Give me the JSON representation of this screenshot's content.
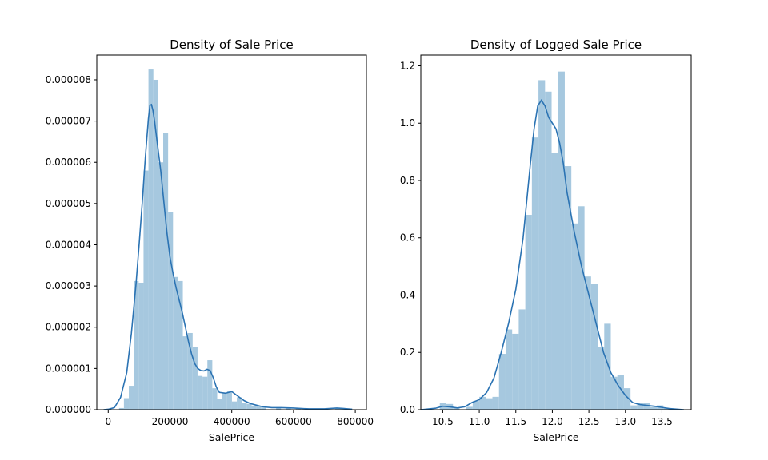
{
  "chart_data": [
    {
      "type": "histogram+kde",
      "title": "Density of Sale Price",
      "xlabel": "SalePrice",
      "ylabel": "",
      "xlim": [
        -37000,
        836000
      ],
      "ylim": [
        0,
        8.6e-06
      ],
      "grid": false,
      "bar_color": "#a6c8df",
      "line_color": "#2b73b3",
      "xticks": [
        0,
        200000,
        400000,
        600000,
        800000
      ],
      "xtick_labels": [
        "0",
        "200000",
        "400000",
        "600000",
        "800000"
      ],
      "yticks": [
        0,
        1e-06,
        2e-06,
        3e-06,
        4e-06,
        5e-06,
        6e-06,
        7e-06,
        8e-06
      ],
      "ytick_labels": [
        "0.000000",
        "0.000001",
        "0.000002",
        "0.000003",
        "0.000004",
        "0.000005",
        "0.000006",
        "0.000007",
        "0.000008"
      ],
      "bins": [
        {
          "x0": 34900,
          "x1": 50800,
          "y": 4e-08
        },
        {
          "x0": 50800,
          "x1": 66700,
          "y": 2.8e-07
        },
        {
          "x0": 66700,
          "x1": 82600,
          "y": 5.8e-07
        },
        {
          "x0": 82600,
          "x1": 98500,
          "y": 3.12e-06
        },
        {
          "x0": 98500,
          "x1": 114400,
          "y": 3.08e-06
        },
        {
          "x0": 114400,
          "x1": 130300,
          "y": 5.8e-06
        },
        {
          "x0": 130300,
          "x1": 146200,
          "y": 8.25e-06
        },
        {
          "x0": 146200,
          "x1": 162100,
          "y": 8e-06
        },
        {
          "x0": 162100,
          "x1": 178000,
          "y": 6e-06
        },
        {
          "x0": 178000,
          "x1": 193900,
          "y": 6.72e-06
        },
        {
          "x0": 193900,
          "x1": 209800,
          "y": 4.8e-06
        },
        {
          "x0": 209800,
          "x1": 225700,
          "y": 3.22e-06
        },
        {
          "x0": 225700,
          "x1": 241600,
          "y": 3.12e-06
        },
        {
          "x0": 241600,
          "x1": 257500,
          "y": 1.78e-06
        },
        {
          "x0": 257500,
          "x1": 273400,
          "y": 1.86e-06
        },
        {
          "x0": 273400,
          "x1": 289300,
          "y": 1.52e-06
        },
        {
          "x0": 289300,
          "x1": 305200,
          "y": 8.2e-07
        },
        {
          "x0": 305200,
          "x1": 321100,
          "y": 8e-07
        },
        {
          "x0": 321100,
          "x1": 337000,
          "y": 1.2e-06
        },
        {
          "x0": 337000,
          "x1": 352900,
          "y": 5.2e-07
        },
        {
          "x0": 352900,
          "x1": 368800,
          "y": 2.7e-07
        },
        {
          "x0": 368800,
          "x1": 384700,
          "y": 4e-07
        },
        {
          "x0": 384700,
          "x1": 400600,
          "y": 4.5e-07
        },
        {
          "x0": 400600,
          "x1": 416500,
          "y": 2e-07
        },
        {
          "x0": 416500,
          "x1": 432400,
          "y": 3e-07
        },
        {
          "x0": 432400,
          "x1": 448300,
          "y": 1.6e-07
        },
        {
          "x0": 448300,
          "x1": 464200,
          "y": 1.4e-07
        },
        {
          "x0": 464200,
          "x1": 480100,
          "y": 1e-07
        },
        {
          "x0": 480100,
          "x1": 496000,
          "y": 8e-08
        },
        {
          "x0": 496000,
          "x1": 511900,
          "y": 5e-08
        },
        {
          "x0": 543700,
          "x1": 559600,
          "y": 5e-08
        },
        {
          "x0": 575500,
          "x1": 591400,
          "y": 4e-08
        },
        {
          "x0": 607300,
          "x1": 623200,
          "y": 4e-08
        },
        {
          "x0": 734500,
          "x1": 750400,
          "y": 5e-08
        },
        {
          "x0": 750400,
          "x1": 766300,
          "y": 4e-08
        }
      ],
      "kde": {
        "x": [
          -15000,
          0,
          20000,
          40000,
          60000,
          75000,
          90000,
          100000,
          110000,
          120000,
          130000,
          135000,
          140000,
          145000,
          150000,
          160000,
          170000,
          180000,
          190000,
          200000,
          210000,
          220000,
          230000,
          240000,
          250000,
          260000,
          270000,
          280000,
          290000,
          300000,
          310000,
          320000,
          330000,
          340000,
          350000,
          360000,
          380000,
          400000,
          420000,
          440000,
          460000,
          480000,
          500000,
          530000,
          560000,
          600000,
          650000,
          700000,
          740000,
          760000,
          790000
        ],
        "y": [
          0.0,
          1e-08,
          5e-08,
          3e-07,
          9e-07,
          1.85e-06,
          3.05e-06,
          4e-06,
          5e-06,
          6.1e-06,
          7.05e-06,
          7.38e-06,
          7.4e-06,
          7.25e-06,
          7e-06,
          6.4e-06,
          5.8e-06,
          5.05e-06,
          4.3e-06,
          3.7e-06,
          3.3e-06,
          2.95e-06,
          2.65e-06,
          2.35e-06,
          2e-06,
          1.65e-06,
          1.35e-06,
          1.12e-06,
          1e-06,
          9.5e-07,
          9.4e-07,
          9.8e-07,
          9.5e-07,
          7.8e-07,
          5.5e-07,
          4.2e-07,
          4e-07,
          4.4e-07,
          3.3e-07,
          2.2e-07,
          1.5e-07,
          1.1e-07,
          7e-08,
          5e-08,
          5e-08,
          4e-08,
          2e-08,
          2e-08,
          4e-08,
          3e-08,
          1e-08
        ]
      }
    },
    {
      "type": "histogram+kde",
      "title": "Density of Logged Sale Price",
      "xlabel": "SalePrice",
      "ylabel": "",
      "xlim": [
        10.2,
        13.9
      ],
      "ylim": [
        0,
        1.2376
      ],
      "grid": false,
      "bar_color": "#a6c8df",
      "line_color": "#2b73b3",
      "xticks": [
        10.5,
        11.0,
        11.5,
        12.0,
        12.5,
        13.0,
        13.5
      ],
      "xtick_labels": [
        "10.5",
        "11.0",
        "11.5",
        "12.0",
        "12.5",
        "13.0",
        "13.5"
      ],
      "yticks": [
        0.0,
        0.2,
        0.4,
        0.6,
        0.8,
        1.0,
        1.2
      ],
      "ytick_labels": [
        "0.0",
        "0.2",
        "0.4",
        "0.6",
        "0.8",
        "1.0",
        "1.2"
      ],
      "bins": [
        {
          "x0": 10.46,
          "x1": 10.55,
          "y": 0.025
        },
        {
          "x0": 10.55,
          "x1": 10.64,
          "y": 0.02
        },
        {
          "x0": 10.64,
          "x1": 10.73,
          "y": 0.008
        },
        {
          "x0": 10.82,
          "x1": 10.91,
          "y": 0.01
        },
        {
          "x0": 10.91,
          "x1": 11.0,
          "y": 0.03
        },
        {
          "x0": 11.0,
          "x1": 11.09,
          "y": 0.045
        },
        {
          "x0": 11.09,
          "x1": 11.18,
          "y": 0.04
        },
        {
          "x0": 11.18,
          "x1": 11.27,
          "y": 0.045
        },
        {
          "x0": 11.27,
          "x1": 11.36,
          "y": 0.195
        },
        {
          "x0": 11.36,
          "x1": 11.45,
          "y": 0.28
        },
        {
          "x0": 11.45,
          "x1": 11.54,
          "y": 0.265
        },
        {
          "x0": 11.54,
          "x1": 11.63,
          "y": 0.35
        },
        {
          "x0": 11.63,
          "x1": 11.72,
          "y": 0.68
        },
        {
          "x0": 11.72,
          "x1": 11.81,
          "y": 0.95
        },
        {
          "x0": 11.81,
          "x1": 11.9,
          "y": 1.15
        },
        {
          "x0": 11.9,
          "x1": 11.99,
          "y": 1.11
        },
        {
          "x0": 11.99,
          "x1": 12.08,
          "y": 0.895
        },
        {
          "x0": 12.08,
          "x1": 12.17,
          "y": 1.18
        },
        {
          "x0": 12.17,
          "x1": 12.26,
          "y": 0.85
        },
        {
          "x0": 12.26,
          "x1": 12.35,
          "y": 0.65
        },
        {
          "x0": 12.35,
          "x1": 12.44,
          "y": 0.71
        },
        {
          "x0": 12.44,
          "x1": 12.53,
          "y": 0.465
        },
        {
          "x0": 12.53,
          "x1": 12.62,
          "y": 0.44
        },
        {
          "x0": 12.62,
          "x1": 12.71,
          "y": 0.22
        },
        {
          "x0": 12.71,
          "x1": 12.8,
          "y": 0.3
        },
        {
          "x0": 12.8,
          "x1": 12.89,
          "y": 0.115
        },
        {
          "x0": 12.89,
          "x1": 12.98,
          "y": 0.12
        },
        {
          "x0": 12.98,
          "x1": 13.07,
          "y": 0.075
        },
        {
          "x0": 13.07,
          "x1": 13.16,
          "y": 0.015
        },
        {
          "x0": 13.16,
          "x1": 13.25,
          "y": 0.025
        },
        {
          "x0": 13.25,
          "x1": 13.34,
          "y": 0.025
        },
        {
          "x0": 13.34,
          "x1": 13.43,
          "y": 0.01
        },
        {
          "x0": 13.43,
          "x1": 13.52,
          "y": 0.015
        },
        {
          "x0": 13.52,
          "x1": 13.61,
          "y": 0.005
        }
      ],
      "kde": {
        "x": [
          10.2,
          10.4,
          10.5,
          10.6,
          10.7,
          10.8,
          10.9,
          11.0,
          11.1,
          11.2,
          11.3,
          11.4,
          11.5,
          11.6,
          11.65,
          11.7,
          11.75,
          11.8,
          11.85,
          11.9,
          11.95,
          12.0,
          12.05,
          12.1,
          12.15,
          12.2,
          12.3,
          12.4,
          12.5,
          12.6,
          12.7,
          12.8,
          12.9,
          13.0,
          13.1,
          13.2,
          13.3,
          13.4,
          13.5,
          13.6,
          13.7,
          13.8
        ],
        "y": [
          0.0,
          0.005,
          0.012,
          0.01,
          0.006,
          0.01,
          0.025,
          0.035,
          0.06,
          0.11,
          0.2,
          0.3,
          0.42,
          0.6,
          0.73,
          0.86,
          0.98,
          1.06,
          1.08,
          1.06,
          1.02,
          1.0,
          0.98,
          0.93,
          0.86,
          0.76,
          0.62,
          0.5,
          0.4,
          0.3,
          0.2,
          0.13,
          0.085,
          0.05,
          0.025,
          0.018,
          0.015,
          0.012,
          0.008,
          0.004,
          0.002,
          0.0
        ]
      }
    }
  ]
}
